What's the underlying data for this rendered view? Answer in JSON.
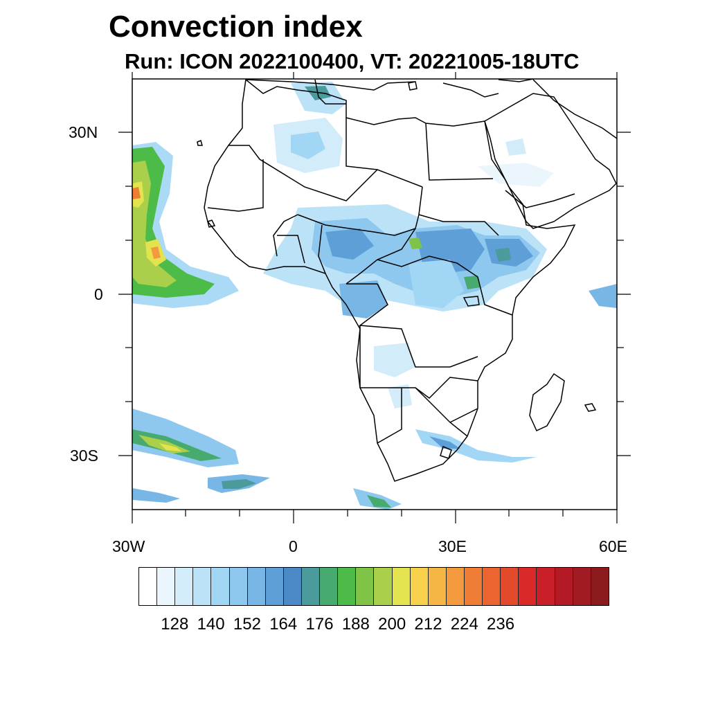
{
  "title": "Convection index",
  "subtitle": "Run: ICON 2022100400,  VT: 20221005-18UTC",
  "map": {
    "region": "Africa and surrounding oceans",
    "projection": "cylindrical equidistant",
    "lon_range": [
      -30,
      60
    ],
    "lat_range": [
      -40,
      40
    ],
    "lon_labels": [
      "30W",
      "0",
      "30E",
      "60E"
    ],
    "lat_labels": [
      "30N",
      "0",
      "30S"
    ]
  },
  "colorbar": {
    "labels": [
      "128",
      "140",
      "152",
      "164",
      "176",
      "188",
      "200",
      "212",
      "224",
      "236"
    ],
    "colors": [
      "#ffffff",
      "#ebf6fc",
      "#d3ecf9",
      "#bbe2f7",
      "#a1d6f4",
      "#8ec8ee",
      "#78b6e6",
      "#5f9fd8",
      "#4b89c6",
      "#4b9a9c",
      "#47ab70",
      "#4dbb48",
      "#7fc447",
      "#aacf4a",
      "#e2e34f",
      "#f7d14c",
      "#f6b646",
      "#f39a3f",
      "#ef7d36",
      "#ea6530",
      "#e24a2b",
      "#d92a29",
      "#c81f29",
      "#b31a26",
      "#a11b22",
      "#8b1a1d"
    ]
  }
}
